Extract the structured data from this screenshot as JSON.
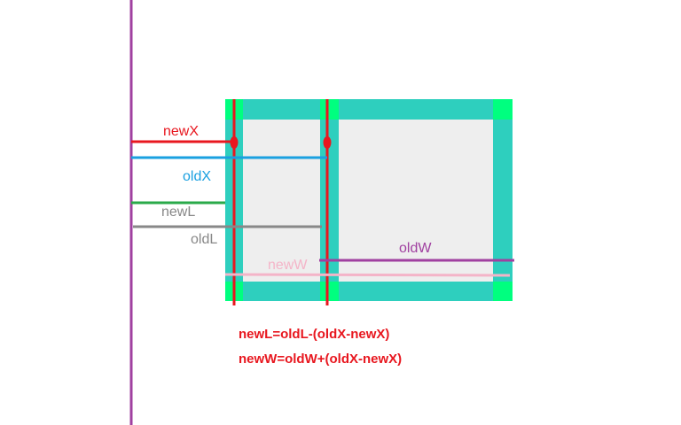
{
  "labels": {
    "newX": "newX",
    "oldX": "oldX",
    "newL": "newL",
    "oldL": "oldL",
    "newW": "newW",
    "oldW": "oldW"
  },
  "formulas": {
    "line1": "newL=oldL-(oldX-newX)",
    "line2": "newW=oldW+(oldX-newX)"
  },
  "colors": {
    "axis": "#a040a0",
    "new_marker": "#e8171f",
    "old_x": "#1aa0e0",
    "new_l": "#2aaa4a",
    "old_l": "#888888",
    "new_w": "#f4b4c8",
    "old_w": "#a040a0",
    "frame": "#2ecfbe",
    "corner": "#00ff7f",
    "panel": "#eeeeee"
  }
}
